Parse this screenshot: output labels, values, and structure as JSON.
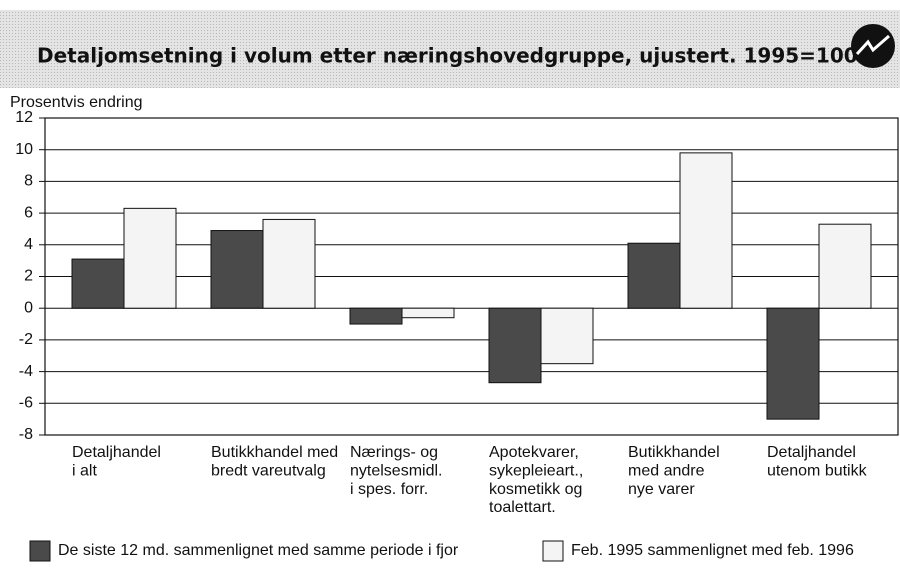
{
  "chart_data": {
    "type": "bar",
    "title": "Detaljomsetning i volum etter næringshovedgruppe, ujustert. 1995=100",
    "y_label": "Prosentvis endring",
    "categories": [
      "Detaljhandel\ni alt",
      "Butikkhandel med\nbredt vareutvalg",
      "Nærings- og\nnytelsesmidl.\ni spes. forr.",
      "Apotekvarer,\nsykepleieart.,\nkosmetikk og\ntoalettart.",
      "Butikkhandel\nmed andre\nnye varer",
      "Detaljhandel\nutenom butikk"
    ],
    "series": [
      {
        "name": "De siste 12 md. sammenlignet med samme periode i fjor",
        "color": "#4a4a4a",
        "values": [
          3.1,
          4.9,
          -1.0,
          -4.7,
          4.1,
          -7.0
        ]
      },
      {
        "name": "Feb. 1995 sammenlignet med feb. 1996",
        "color": "#f4f4f4",
        "values": [
          6.3,
          5.6,
          -0.6,
          -3.5,
          9.8,
          5.3
        ]
      }
    ],
    "ylim": [
      -8,
      12
    ],
    "yticks": [
      -8,
      -6,
      -4,
      -2,
      0,
      2,
      4,
      6,
      8,
      10,
      12
    ],
    "grid": true
  }
}
